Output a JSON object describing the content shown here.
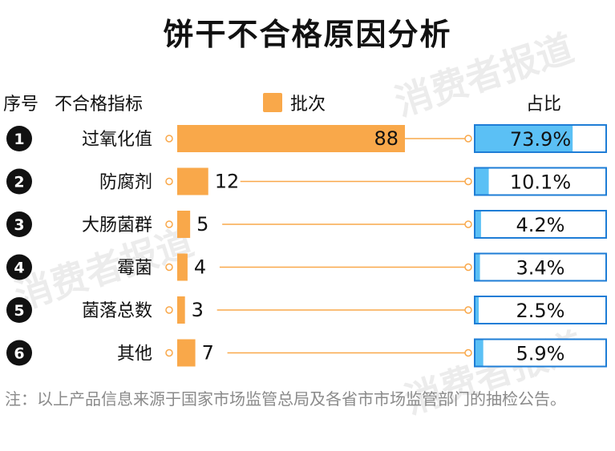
{
  "title": "饼干不合格原因分析",
  "header": {
    "col_index": "序号",
    "col_indicator": "不合格指标",
    "legend_label": "批次",
    "col_ratio": "占比"
  },
  "watermark_text": "消费者报道",
  "footnote": "注：以上产品信息来源于国家市场监管总局及各省市市场监管部门的抽检公告。",
  "colors": {
    "bar": "#F9A84A",
    "ratio_fill": "#5BC0F5",
    "ratio_border": "#1E7DD6",
    "connector": "#F9A84A",
    "badge": "#111111"
  },
  "chart_data": {
    "type": "bar",
    "orientation": "horizontal",
    "categories": [
      "过氧化值",
      "防腐剂",
      "大肠菌群",
      "霉菌",
      "菌落总数",
      "其他"
    ],
    "index_labels": [
      "1",
      "2",
      "3",
      "4",
      "5",
      "6"
    ],
    "series": [
      {
        "name": "批次",
        "values": [
          88,
          12,
          5,
          4,
          3,
          7
        ]
      }
    ],
    "ratio_labels": [
      "73.9%",
      "10.1%",
      "4.2%",
      "3.4%",
      "2.5%",
      "5.9%"
    ],
    "ratio_values": [
      73.9,
      10.1,
      4.2,
      3.4,
      2.5,
      5.9
    ],
    "xlim": [
      0,
      88
    ],
    "ratio_lim": [
      0,
      100
    ],
    "grid": false,
    "legend": "top-center"
  }
}
